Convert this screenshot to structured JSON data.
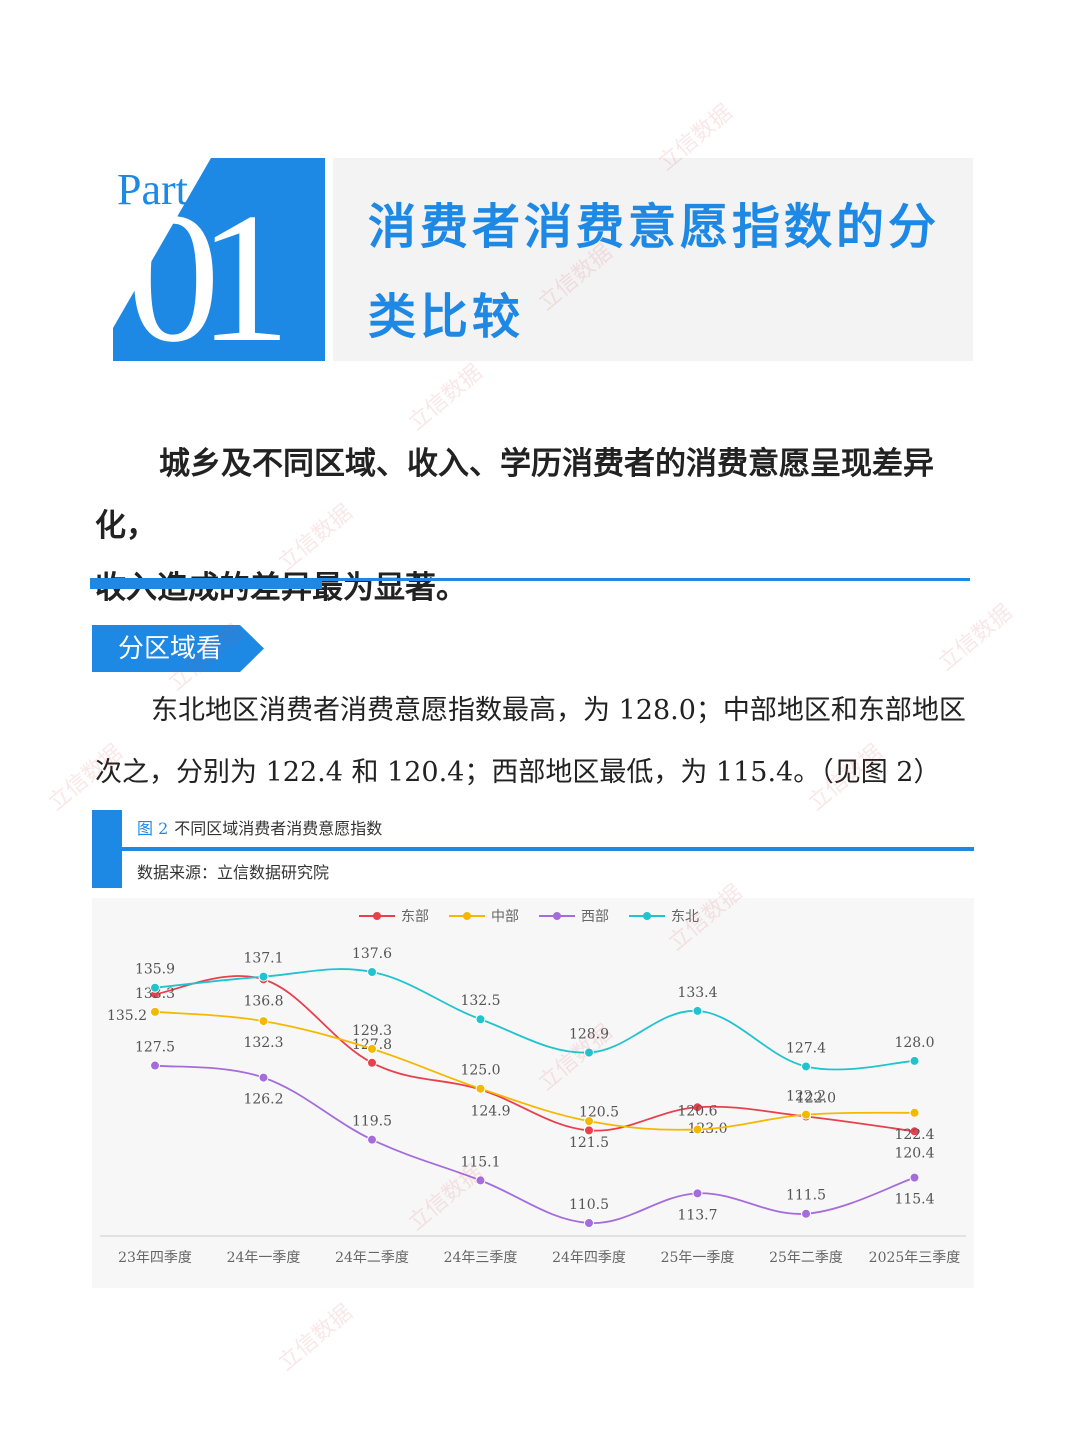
{
  "header": {
    "part_label": "Part",
    "part_number": "01",
    "title": "消费者消费意愿指数的分类比较"
  },
  "lead": {
    "line1": "城乡及不同区域、收入、学历消费者的消费意愿呈现差异化，",
    "line2": "收入造成的差异最为显著。"
  },
  "section": {
    "tag": "分区域看",
    "para_line1": "东北地区消费者消费意愿指数最高，为 128.0；中部地区和东部地区",
    "para_line2": "次之，分别为 122.4 和 120.4；西部地区最低，为 115.4。（见图 2）"
  },
  "figure": {
    "number": "图 2",
    "title": "不同区域消费者消费意愿指数",
    "source": "数据来源：立信数据研究院"
  },
  "watermark": "立信数据",
  "chart_data": {
    "type": "line",
    "categories": [
      "23年四季度",
      "24年一季度",
      "24年二季度",
      "24年三季度",
      "24年四季度",
      "25年一季度",
      "25年二季度",
      "2025年三季度"
    ],
    "series": [
      {
        "name": "东部",
        "color": "#e8404d",
        "values": [
          135.2,
          136.8,
          127.8,
          124.9,
          120.5,
          123.0,
          122.0,
          120.4
        ]
      },
      {
        "name": "中部",
        "color": "#f5b800",
        "values": [
          133.3,
          132.3,
          129.3,
          125.0,
          121.5,
          120.6,
          122.2,
          122.4
        ]
      },
      {
        "name": "西部",
        "color": "#a56cdc",
        "values": [
          127.5,
          126.2,
          119.5,
          115.1,
          110.5,
          113.7,
          111.5,
          115.4
        ]
      },
      {
        "name": "东北",
        "color": "#1fc4cf",
        "values": [
          135.9,
          137.1,
          137.6,
          132.5,
          128.9,
          133.4,
          127.4,
          128.0
        ]
      }
    ],
    "legend_position": "top-center",
    "grid": false,
    "curve": "smooth"
  }
}
